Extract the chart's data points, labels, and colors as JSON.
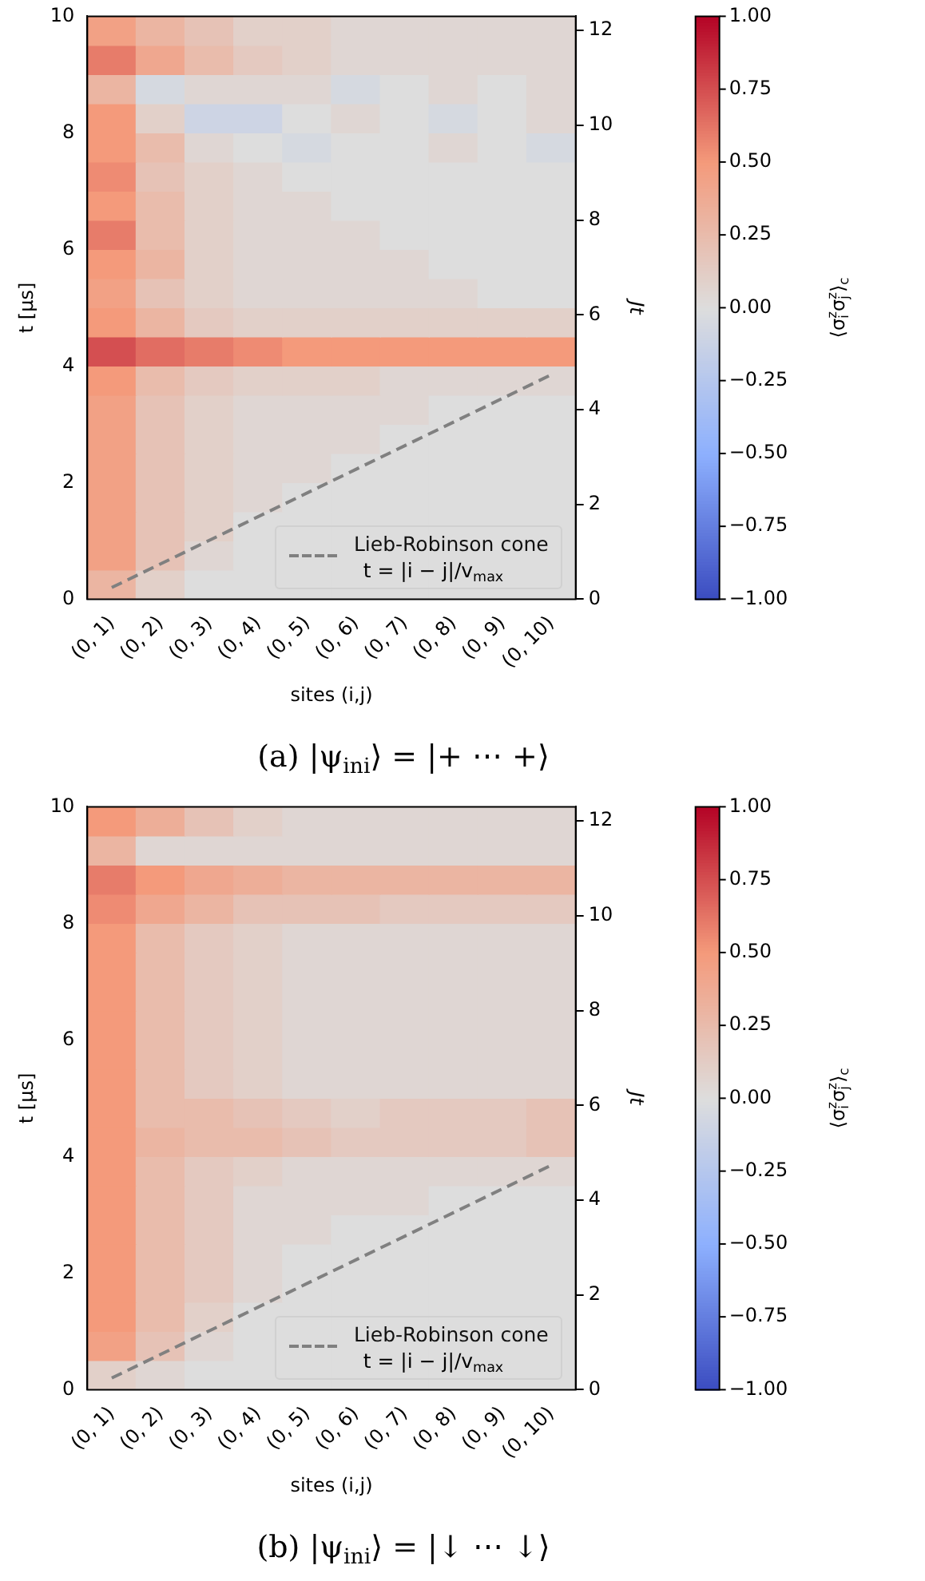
{
  "chart_data": [
    {
      "type": "heatmap",
      "xlabel": "sites (i,j)",
      "ylabel": "t [μs]",
      "y2label": "Jt",
      "clabel": "⟨σ$^{z}$$_{i}$σ$^{z}$$_{j}$⟩$_{c}$",
      "categories": [
        "(0, 1)",
        "(0, 2)",
        "(0, 3)",
        "(0, 4)",
        "(0, 5)",
        "(0, 6)",
        "(0, 7)",
        "(0, 8)",
        "(0, 9)",
        "(0, 10)"
      ],
      "ylim": [
        0,
        10
      ],
      "yticks": [
        0,
        2,
        4,
        6,
        8,
        10
      ],
      "y2lim": [
        0,
        12.3
      ],
      "y2ticks": [
        0,
        2,
        4,
        6,
        8,
        10,
        12
      ],
      "clim": [
        -1,
        1
      ],
      "cticks": [
        {
          "value": -1,
          "label": "−1.00"
        },
        {
          "value": -0.75,
          "label": "−0.75"
        },
        {
          "value": -0.5,
          "label": "−0.50"
        },
        {
          "value": -0.25,
          "label": "−0.25"
        },
        {
          "value": 0,
          "label": "0.00"
        },
        {
          "value": 0.25,
          "label": "0.25"
        },
        {
          "value": 0.5,
          "label": "0.50"
        },
        {
          "value": 0.75,
          "label": "0.75"
        },
        {
          "value": 1,
          "label": "1.00"
        }
      ],
      "cells": [
        [
          0.45,
          0.3,
          0.2,
          0.1,
          0.1,
          0.05,
          0.05,
          0.05,
          0.05,
          0.05
        ],
        [
          0.6,
          0.4,
          0.25,
          0.15,
          0.1,
          0.05,
          0.05,
          0.05,
          0.05,
          0.05
        ],
        [
          0.3,
          -0.05,
          0.05,
          0.05,
          0.05,
          -0.05,
          0,
          0.05,
          0,
          0.05
        ],
        [
          0.5,
          0.1,
          -0.1,
          -0.1,
          0,
          0.05,
          0,
          -0.05,
          0,
          0.05
        ],
        [
          0.5,
          0.25,
          0.05,
          0,
          -0.05,
          0,
          0,
          0.05,
          0,
          -0.05
        ],
        [
          0.55,
          0.2,
          0.1,
          0.05,
          0,
          0,
          0,
          0,
          0,
          0
        ],
        [
          0.5,
          0.25,
          0.1,
          0.05,
          0.05,
          0,
          0,
          0,
          0,
          0
        ],
        [
          0.6,
          0.25,
          0.1,
          0.05,
          0.05,
          0.05,
          0,
          0,
          0,
          0
        ],
        [
          0.5,
          0.3,
          0.1,
          0.05,
          0.05,
          0.05,
          0.05,
          0,
          0,
          0
        ],
        [
          0.45,
          0.2,
          0.1,
          0.05,
          0.05,
          0.05,
          0.05,
          0.05,
          0,
          0
        ],
        [
          0.5,
          0.3,
          0.15,
          0.1,
          0.1,
          0.1,
          0.1,
          0.1,
          0.1,
          0.1
        ],
        [
          0.75,
          0.65,
          0.6,
          0.55,
          0.5,
          0.5,
          0.5,
          0.5,
          0.5,
          0.5
        ],
        [
          0.5,
          0.25,
          0.15,
          0.1,
          0.1,
          0.1,
          0.05,
          0.05,
          0.05,
          0.05
        ],
        [
          0.45,
          0.2,
          0.1,
          0.05,
          0.05,
          0.05,
          0.05,
          0,
          0,
          0
        ],
        [
          0.45,
          0.2,
          0.1,
          0.05,
          0.05,
          0.05,
          0,
          0,
          0,
          0
        ],
        [
          0.45,
          0.2,
          0.1,
          0.05,
          0.05,
          0,
          0,
          0,
          0,
          0
        ],
        [
          0.45,
          0.2,
          0.1,
          0.05,
          0,
          0,
          0,
          0,
          0,
          0
        ],
        [
          0.45,
          0.2,
          0.1,
          0,
          0,
          0,
          0,
          0,
          0,
          0
        ],
        [
          0.45,
          0.2,
          0.05,
          0,
          0,
          0,
          0,
          0,
          0,
          0
        ],
        [
          0.3,
          0.1,
          0,
          0,
          0,
          0,
          0,
          0,
          0,
          0
        ]
      ],
      "series": [
        {
          "type": "line",
          "name": "Lieb-Robinson cone",
          "color": "#808080",
          "x": [
            "(0, 1)",
            "(0, 10)"
          ],
          "values": [
            0.2,
            3.85
          ],
          "line_style": "dashed",
          "marker": "none"
        }
      ],
      "legend": "bottom right",
      "annotations": [
        "t = |i − j|/v$_{max}$",
        "(a) |ψ$_{ini}$⟩ = |+ ⋯ +⟩"
      ]
    },
    {
      "type": "heatmap",
      "xlabel": "sites (i,j)",
      "ylabel": "t [μs]",
      "y2label": "Jt",
      "clabel": "⟨σ$^{z}$$_{i}$σ$^{z}$$_{j}$⟩$_{c}$",
      "categories": [
        "(0, 1)",
        "(0, 2)",
        "(0, 3)",
        "(0, 4)",
        "(0, 5)",
        "(0, 6)",
        "(0, 7)",
        "(0, 8)",
        "(0, 9)",
        "(0, 10)"
      ],
      "ylim": [
        0,
        10
      ],
      "yticks": [
        0,
        2,
        4,
        6,
        8,
        10
      ],
      "y2lim": [
        0,
        12.3
      ],
      "y2ticks": [
        0,
        2,
        4,
        6,
        8,
        10,
        12
      ],
      "clim": [
        -1,
        1
      ],
      "cticks": [
        {
          "value": -1,
          "label": "−1.00"
        },
        {
          "value": -0.75,
          "label": "−0.75"
        },
        {
          "value": -0.5,
          "label": "−0.50"
        },
        {
          "value": -0.25,
          "label": "−0.25"
        },
        {
          "value": 0,
          "label": "0.00"
        },
        {
          "value": 0.25,
          "label": "0.25"
        },
        {
          "value": 0.5,
          "label": "0.50"
        },
        {
          "value": 0.75,
          "label": "0.75"
        },
        {
          "value": 1,
          "label": "1.00"
        }
      ],
      "cells": [
        [
          0.5,
          0.35,
          0.2,
          0.1,
          0.05,
          0.05,
          0.05,
          0.05,
          0.05,
          0.05
        ],
        [
          0.3,
          0.05,
          0.05,
          0.05,
          0.05,
          0.05,
          0.05,
          0.05,
          0.05,
          0.05
        ],
        [
          0.6,
          0.5,
          0.4,
          0.35,
          0.3,
          0.3,
          0.3,
          0.3,
          0.3,
          0.3
        ],
        [
          0.55,
          0.4,
          0.3,
          0.2,
          0.2,
          0.2,
          0.15,
          0.15,
          0.15,
          0.15
        ],
        [
          0.5,
          0.25,
          0.15,
          0.1,
          0.05,
          0.05,
          0.05,
          0.05,
          0.05,
          0.05
        ],
        [
          0.5,
          0.25,
          0.15,
          0.1,
          0.05,
          0.05,
          0.05,
          0.05,
          0.05,
          0.05
        ],
        [
          0.5,
          0.25,
          0.15,
          0.1,
          0.05,
          0.05,
          0.05,
          0.05,
          0.05,
          0.05
        ],
        [
          0.5,
          0.25,
          0.15,
          0.1,
          0.05,
          0.05,
          0.05,
          0.05,
          0.05,
          0.05
        ],
        [
          0.5,
          0.25,
          0.15,
          0.1,
          0.05,
          0.05,
          0.05,
          0.05,
          0.05,
          0.05
        ],
        [
          0.5,
          0.25,
          0.15,
          0.1,
          0.05,
          0.05,
          0.05,
          0.05,
          0.05,
          0.05
        ],
        [
          0.5,
          0.25,
          0.25,
          0.2,
          0.15,
          0.1,
          0.15,
          0.15,
          0.15,
          0.2
        ],
        [
          0.5,
          0.3,
          0.25,
          0.25,
          0.2,
          0.15,
          0.15,
          0.15,
          0.15,
          0.2
        ],
        [
          0.5,
          0.25,
          0.15,
          0.1,
          0.05,
          0.05,
          0.05,
          0.05,
          0.05,
          0.05
        ],
        [
          0.5,
          0.25,
          0.15,
          0.05,
          0.05,
          0.05,
          0.05,
          0,
          0,
          0
        ],
        [
          0.5,
          0.25,
          0.15,
          0.05,
          0.05,
          0,
          0,
          0,
          0,
          0
        ],
        [
          0.5,
          0.25,
          0.15,
          0.05,
          0,
          0,
          0,
          0,
          0,
          0
        ],
        [
          0.5,
          0.25,
          0.15,
          0.05,
          0,
          0,
          0,
          0,
          0,
          0
        ],
        [
          0.5,
          0.25,
          0.1,
          0,
          0,
          0,
          0,
          0,
          0,
          0
        ],
        [
          0.45,
          0.2,
          0.05,
          0,
          0,
          0,
          0,
          0,
          0,
          0
        ],
        [
          0.1,
          0.05,
          0,
          0,
          0,
          0,
          0,
          0,
          0,
          0
        ]
      ],
      "series": [
        {
          "type": "line",
          "name": "Lieb-Robinson cone",
          "color": "#808080",
          "x": [
            "(0, 1)",
            "(0, 10)"
          ],
          "values": [
            0.2,
            3.85
          ],
          "line_style": "dashed",
          "marker": "none"
        }
      ],
      "legend": "bottom right",
      "annotations": [
        "t = |i − j|/v$_{max}$",
        "(b) |ψ$_{ini}$⟩ = |↓ ⋯ ↓⟩"
      ]
    }
  ]
}
